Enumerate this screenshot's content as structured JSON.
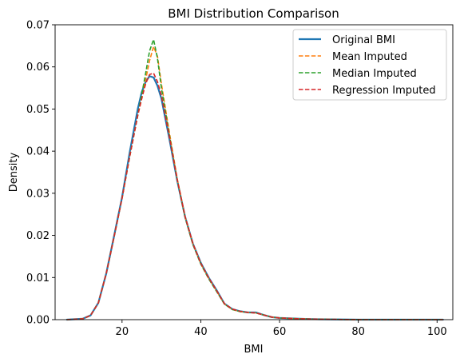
{
  "chart_data": {
    "type": "line",
    "title": "BMI Distribution Comparison",
    "xlabel": "BMI",
    "ylabel": "Density",
    "xlim": [
      3,
      104
    ],
    "ylim": [
      0,
      0.07
    ],
    "xticks": [
      20,
      40,
      60,
      80,
      100
    ],
    "yticks": [
      0.0,
      0.01,
      0.02,
      0.03,
      0.04,
      0.05,
      0.06,
      0.07
    ],
    "ytick_labels": [
      "0.00",
      "0.01",
      "0.02",
      "0.03",
      "0.04",
      "0.05",
      "0.06",
      "0.07"
    ],
    "grid": false,
    "legend_position": "top-right",
    "series": [
      {
        "name": "Original BMI",
        "color": "#1f77b4",
        "style": "solid",
        "x": [
          6,
          10,
          12,
          14,
          16,
          18,
          20,
          22,
          24,
          25,
          26,
          27,
          28,
          29,
          30,
          32,
          34,
          36,
          38,
          40,
          42,
          44,
          46,
          48,
          50,
          52,
          54,
          56,
          58,
          60,
          65,
          70,
          80,
          90,
          101.5
        ],
        "y": [
          0,
          0.0002,
          0.001,
          0.004,
          0.011,
          0.02,
          0.029,
          0.04,
          0.05,
          0.054,
          0.0565,
          0.0578,
          0.0575,
          0.0555,
          0.0525,
          0.043,
          0.033,
          0.0245,
          0.018,
          0.0135,
          0.01,
          0.007,
          0.0038,
          0.0025,
          0.002,
          0.0017,
          0.0017,
          0.0011,
          0.0006,
          0.0004,
          0.0002,
          0.0001,
          0,
          0,
          0
        ]
      },
      {
        "name": "Mean Imputed",
        "color": "#ff7f0e",
        "style": "dashed",
        "x": [
          6,
          10,
          12,
          14,
          16,
          18,
          20,
          22,
          24,
          25,
          26,
          27,
          28,
          29,
          30,
          32,
          34,
          36,
          38,
          40,
          42,
          44,
          46,
          48,
          50,
          52,
          54,
          56,
          58,
          60,
          65,
          70,
          80,
          90,
          101.5
        ],
        "y": [
          0,
          0.0002,
          0.001,
          0.004,
          0.011,
          0.0198,
          0.0288,
          0.039,
          0.0485,
          0.0525,
          0.057,
          0.0615,
          0.0648,
          0.0625,
          0.056,
          0.0445,
          0.0335,
          0.0245,
          0.018,
          0.0133,
          0.0098,
          0.0068,
          0.0037,
          0.0024,
          0.0019,
          0.0017,
          0.0016,
          0.0011,
          0.0006,
          0.0004,
          0.0002,
          0.0001,
          0,
          0,
          0
        ]
      },
      {
        "name": "Median Imputed",
        "color": "#2ca02c",
        "style": "dashed",
        "x": [
          6,
          10,
          12,
          14,
          16,
          18,
          20,
          22,
          24,
          25,
          26,
          27,
          28,
          29,
          30,
          32,
          34,
          36,
          38,
          40,
          42,
          44,
          46,
          48,
          50,
          52,
          54,
          56,
          58,
          60,
          65,
          70,
          80,
          90,
          101.5
        ],
        "y": [
          0,
          0.0002,
          0.001,
          0.004,
          0.011,
          0.0198,
          0.0288,
          0.039,
          0.0485,
          0.0535,
          0.0585,
          0.0638,
          0.0665,
          0.062,
          0.055,
          0.044,
          0.0332,
          0.0243,
          0.0178,
          0.0132,
          0.0097,
          0.0067,
          0.0037,
          0.0024,
          0.0019,
          0.0017,
          0.0016,
          0.0011,
          0.0006,
          0.0004,
          0.0002,
          0.0001,
          0,
          0,
          0
        ]
      },
      {
        "name": "Regression Imputed",
        "color": "#d62728",
        "style": "dashed",
        "x": [
          6,
          10,
          12,
          14,
          16,
          18,
          20,
          22,
          24,
          25,
          26,
          27,
          28,
          29,
          30,
          32,
          34,
          36,
          38,
          40,
          42,
          44,
          46,
          48,
          50,
          52,
          54,
          56,
          58,
          60,
          65,
          70,
          80,
          90,
          101.5
        ],
        "y": [
          0,
          0.0002,
          0.001,
          0.004,
          0.011,
          0.0198,
          0.0288,
          0.039,
          0.0485,
          0.0525,
          0.056,
          0.0582,
          0.0585,
          0.0565,
          0.0532,
          0.0435,
          0.0333,
          0.0245,
          0.018,
          0.0134,
          0.0099,
          0.0069,
          0.0038,
          0.0025,
          0.002,
          0.0017,
          0.0016,
          0.0011,
          0.0006,
          0.0004,
          0.0002,
          0.0001,
          0,
          0,
          0
        ]
      }
    ]
  }
}
